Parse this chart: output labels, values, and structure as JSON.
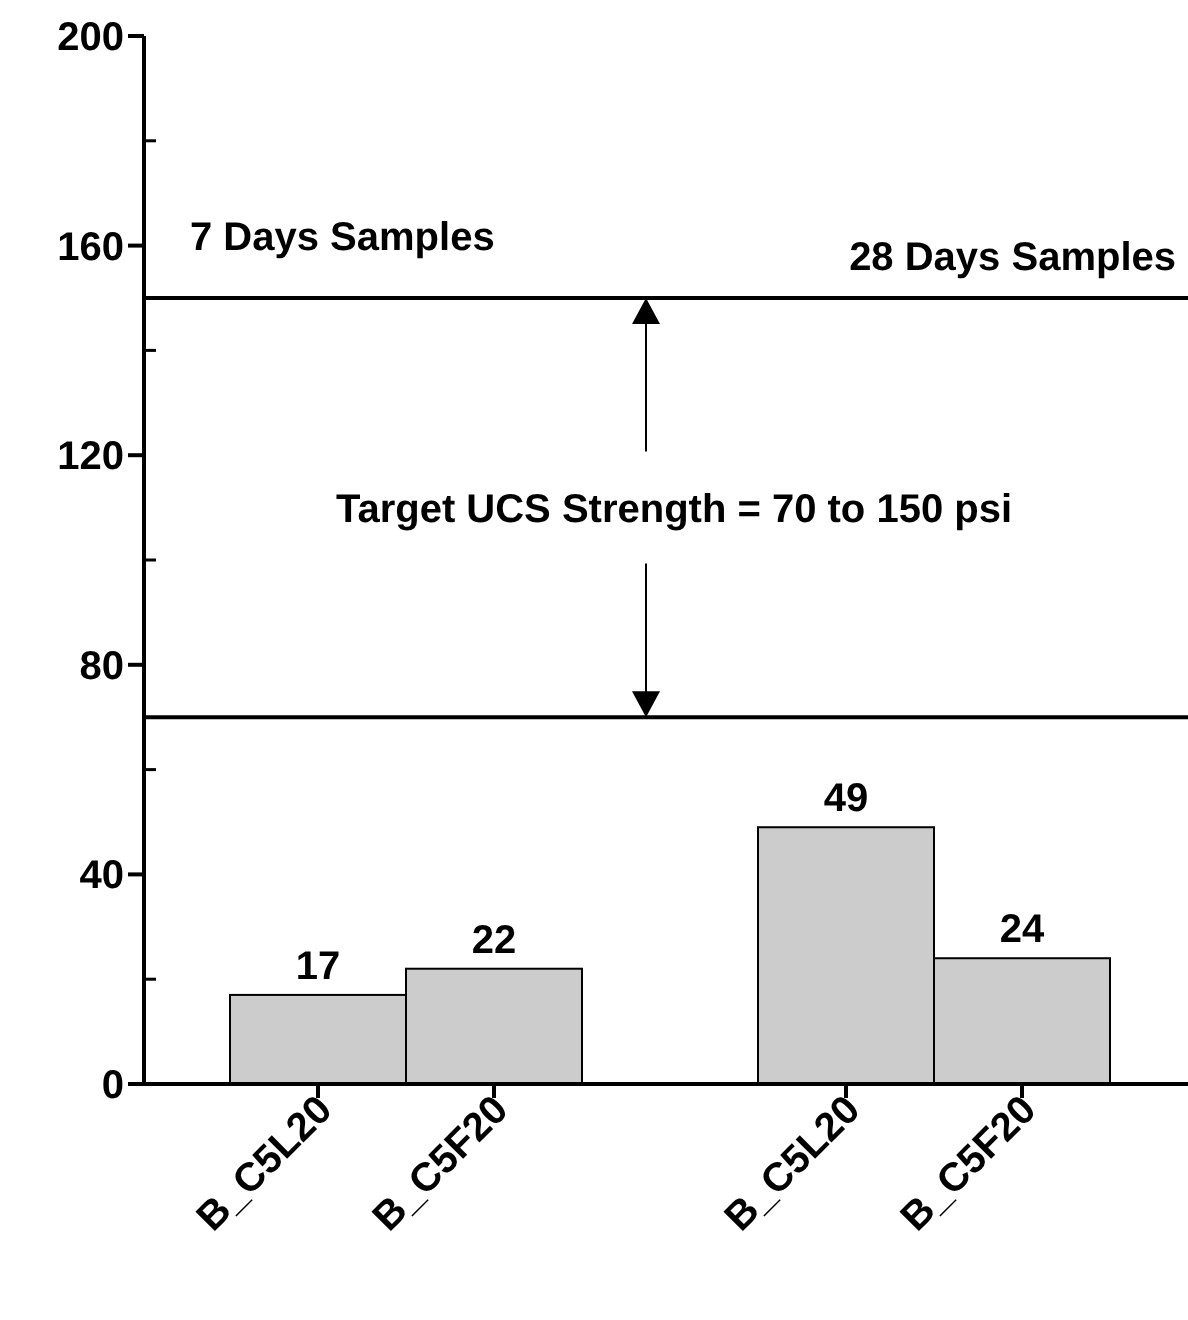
{
  "chart_data": {
    "type": "bar",
    "categories": [
      "B_C5L20",
      "B_C5F20",
      null,
      "B_C5L20",
      "B_C5F20"
    ],
    "values": [
      17,
      22,
      null,
      49,
      24
    ],
    "color": "#cccccc",
    "data_labels": true,
    "ylim": [
      0,
      200
    ],
    "yticks": [
      0,
      {
        "value": 20,
        "label": null
      },
      40,
      {
        "value": 60,
        "label": null
      },
      80,
      {
        "value": 100,
        "label": null
      },
      120,
      {
        "value": 140,
        "label": null
      },
      160,
      {
        "value": 180,
        "label": null
      },
      200
    ],
    "ref_lines": [
      {
        "axis": "y",
        "value": 150
      },
      {
        "axis": "y",
        "value": 70
      }
    ],
    "annotations": [
      "7 Days Samples",
      "28 Days Samples",
      "Target UCS Strength = 70 to 150 psi"
    ]
  }
}
